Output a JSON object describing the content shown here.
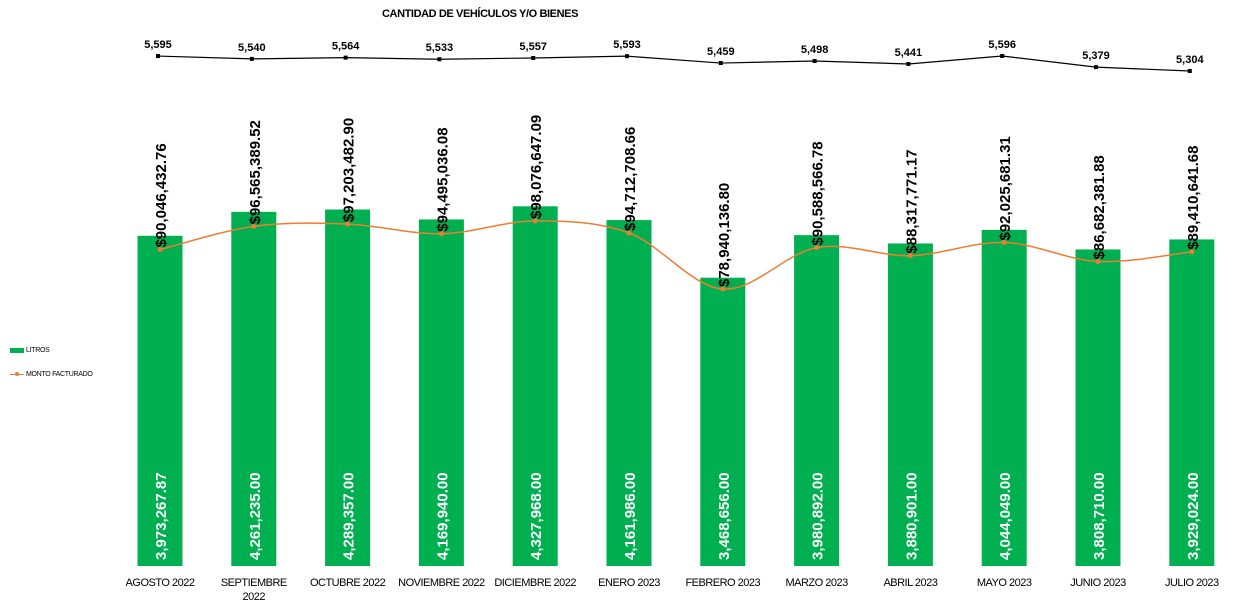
{
  "chart_data": [
    {
      "type": "line",
      "title": "CANTIDAD DE VEHÍCULOS Y/O BIENES",
      "categories": [
        "AGOSTO 2022",
        "SEPTIEMBRE 2022",
        "OCTUBRE 2022",
        "NOVIEMBRE 2022",
        "DICIEMBRE 2022",
        "ENERO 2023",
        "FEBRERO 2023",
        "MARZO 2023",
        "ABRIL 2023",
        "MAYO 2023",
        "JUNIO 2023",
        "JULIO 2023"
      ],
      "values": [
        5595,
        5540,
        5564,
        5533,
        5557,
        5593,
        5459,
        5498,
        5441,
        5596,
        5379,
        5304
      ],
      "value_labels": [
        "5,595",
        "5,540",
        "5,564",
        "5,533",
        "5,557",
        "5,593",
        "5,459",
        "5,498",
        "5,441",
        "5,596",
        "5,379",
        "5,304"
      ],
      "color": "#000000",
      "marker": "square",
      "grid": false
    },
    {
      "type": "bar",
      "categories": [
        "AGOSTO 2022",
        "SEPTIEMBRE 2022",
        "OCTUBRE 2022",
        "NOVIEMBRE 2022",
        "DICIEMBRE 2022",
        "ENERO 2023",
        "FEBRERO 2023",
        "MARZO 2023",
        "ABRIL 2023",
        "MAYO 2023",
        "JUNIO 2023",
        "JULIO 2023"
      ],
      "category_labels": [
        [
          "AGOSTO 2022"
        ],
        [
          "SEPTIEMBRE",
          "2022"
        ],
        [
          "OCTUBRE 2022"
        ],
        [
          "NOVIEMBRE 2022"
        ],
        [
          "DICIEMBRE 2022"
        ],
        [
          "ENERO 2023"
        ],
        [
          "FEBRERO 2023"
        ],
        [
          "MARZO 2023"
        ],
        [
          "ABRIL 2023"
        ],
        [
          "MAYO 2023"
        ],
        [
          "JUNIO 2023"
        ],
        [
          "JULIO 2023"
        ]
      ],
      "legend_position": "left",
      "grid": false,
      "series": [
        {
          "name": "LITROS",
          "type": "bar",
          "color": "#00b050",
          "values": [
            3973267.87,
            4261235.0,
            4289357.0,
            4169940.0,
            4327968.0,
            4161986.0,
            3468656.0,
            3980892.0,
            3880901.0,
            4044049.0,
            3808710.0,
            3929024.0
          ],
          "value_labels": [
            "3,973,267.87",
            "4,261,235.00",
            "4,289,357.00",
            "4,169,940.00",
            "4,327,968.00",
            "4,161,986.00",
            "3,468,656.00",
            "3,980,892.00",
            "3,880,901.00",
            "4,044,049.00",
            "3,808,710.00",
            "3,929,024.00"
          ]
        },
        {
          "name": "MONTO FACTURADO",
          "type": "line",
          "smooth": true,
          "marker": "circle",
          "color": "#ed7d31",
          "values": [
            90046432.76,
            96565389.52,
            97203482.9,
            94495036.08,
            98076647.09,
            94712708.66,
            78940136.8,
            90588566.78,
            88317771.17,
            92025681.31,
            86682381.88,
            89410641.68
          ],
          "value_labels": [
            "$90,046,432.76",
            "$96,565,389.52",
            "$97,203,482.90",
            "$94,495,036.08",
            "$98,076,647.09",
            "$94,712,708.66",
            "$78,940,136.80",
            "$90,588,566.78",
            "$88,317,771.17",
            "$92,025,681.31",
            "$86,682,381.88",
            "$89,410,641.68"
          ]
        }
      ]
    }
  ]
}
